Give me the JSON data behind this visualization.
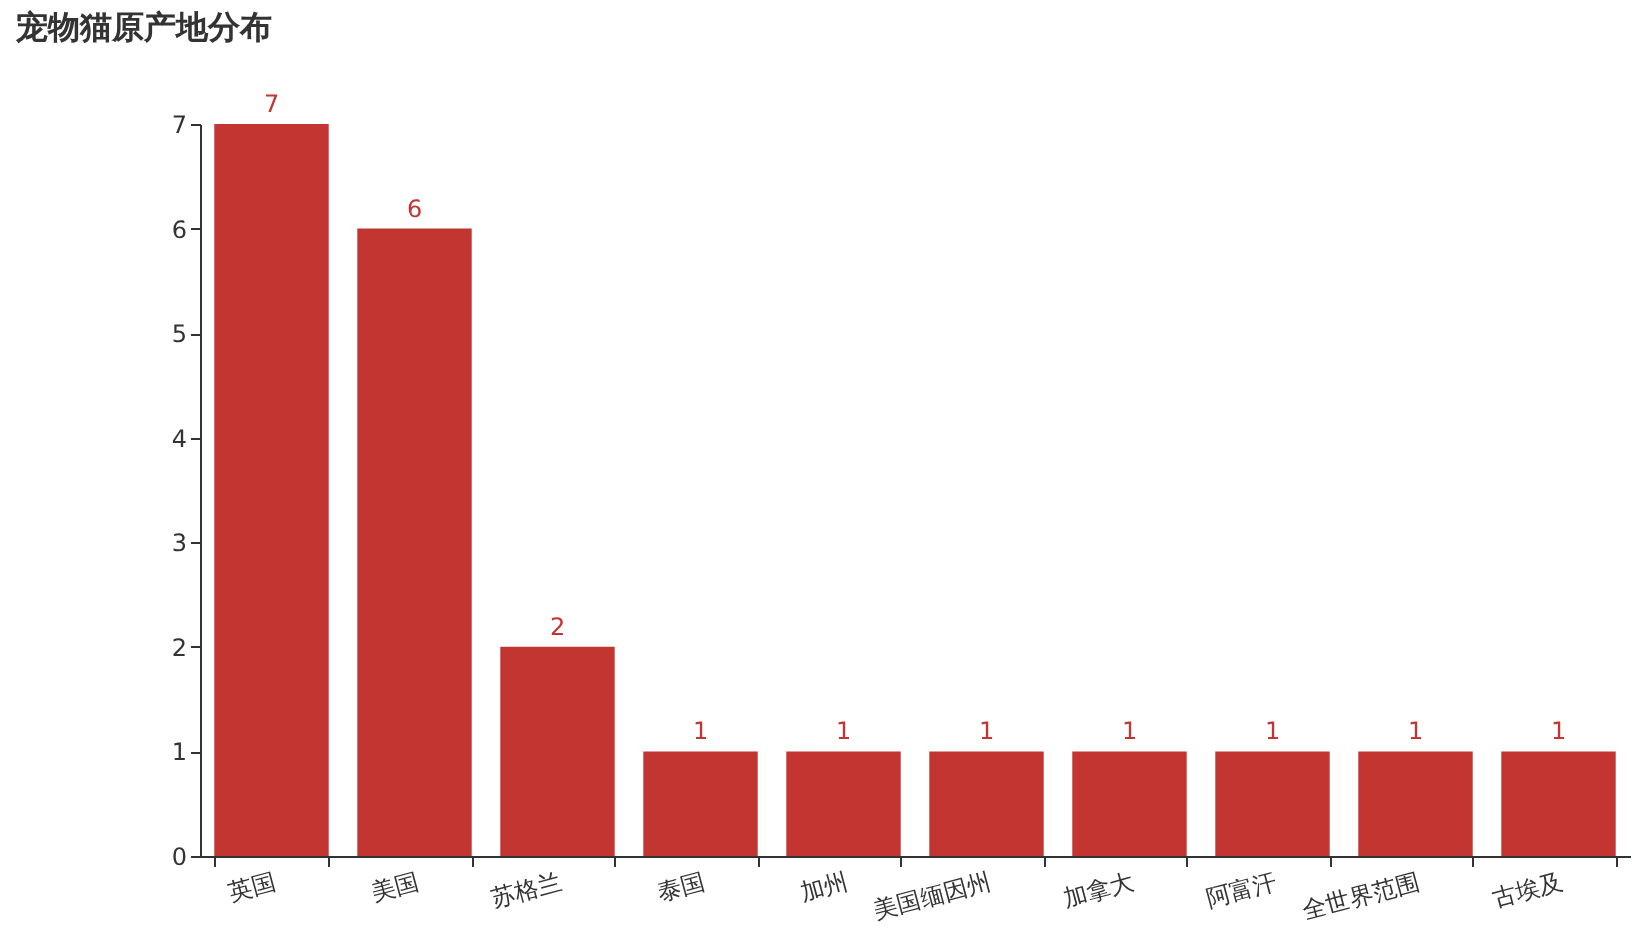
{
  "chart_data": {
    "type": "bar",
    "title": "宠物猫原产地分布",
    "categories": [
      "英国",
      "美国",
      "苏格兰",
      "泰国",
      "加州",
      "美国缅因州",
      "加拿大",
      "阿富汗",
      "全世界范围",
      "古埃及"
    ],
    "values": [
      7,
      6,
      2,
      1,
      1,
      1,
      1,
      1,
      1,
      1
    ],
    "color": "#c23531",
    "ylim": [
      0,
      7
    ],
    "yticks": [
      0,
      1,
      2,
      3,
      4,
      5,
      6,
      7
    ],
    "grid": false,
    "data_labels": true
  }
}
